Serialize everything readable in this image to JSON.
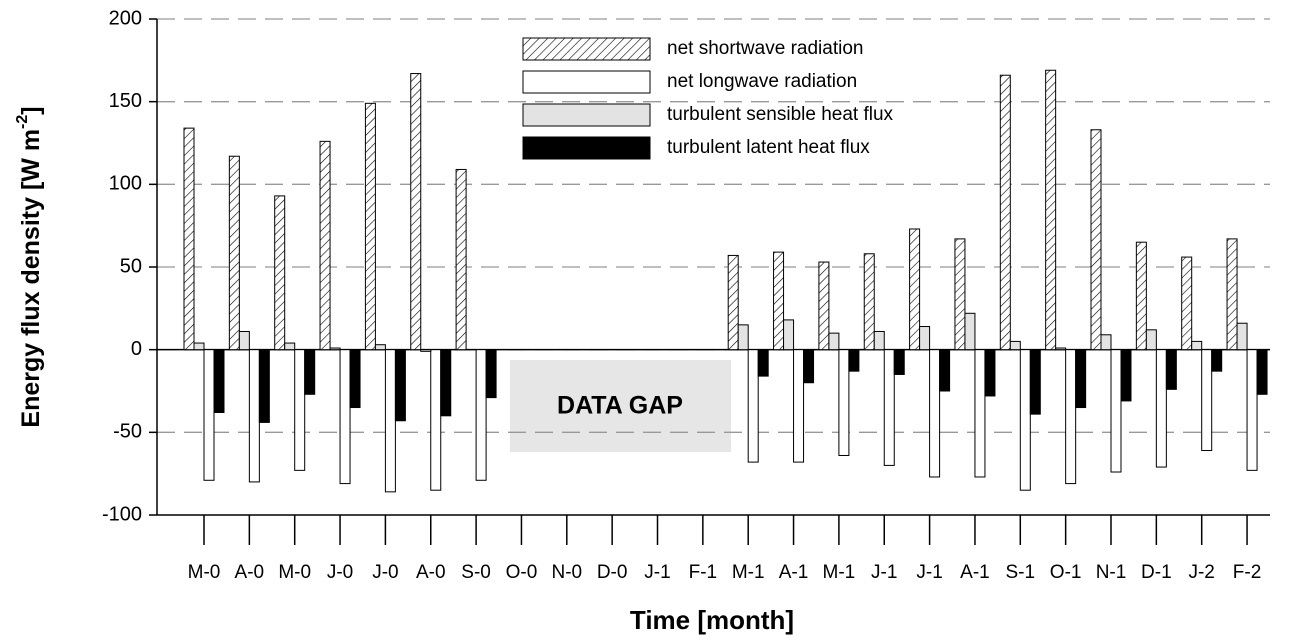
{
  "chart_data": {
    "type": "bar",
    "y_label": {
      "text": "Energy flux density [W m",
      "superscript": "-2",
      "suffix": "]"
    },
    "x_label": "Time [month]",
    "annotation": "DATA GAP",
    "categories": [
      "M-0",
      "A-0",
      "M-0",
      "J-0",
      "J-0",
      "A-0",
      "S-0",
      "O-0",
      "N-0",
      "D-0",
      "J-1",
      "F-1",
      "M-1",
      "A-1",
      "M-1",
      "J-1",
      "J-1",
      "A-1",
      "S-1",
      "O-1",
      "N-1",
      "D-1",
      "J-2",
      "F-2"
    ],
    "series": [
      {
        "name": "net shortwave radiation",
        "color": "#ffffff",
        "hatch": true,
        "values": [
          134,
          117,
          93,
          126,
          149,
          167,
          109,
          null,
          null,
          null,
          null,
          null,
          57,
          59,
          53,
          58,
          73,
          67,
          166,
          169,
          133,
          65,
          56,
          67
        ]
      },
      {
        "name": "net longwave radiation",
        "color": "#ffffff",
        "hatch": false,
        "values": [
          -79,
          -80,
          -73,
          -81,
          -86,
          -85,
          -79,
          null,
          null,
          null,
          null,
          null,
          -68,
          -68,
          -64,
          -70,
          -77,
          -77,
          -85,
          -81,
          -74,
          -71,
          -61,
          -73
        ]
      },
      {
        "name": "turbulent sensible heat flux",
        "color": "#e3e3e3",
        "hatch": false,
        "values": [
          4,
          11,
          4,
          1,
          3,
          -1,
          0,
          null,
          null,
          null,
          null,
          null,
          15,
          18,
          10,
          11,
          14,
          22,
          5,
          1,
          9,
          12,
          5,
          16
        ]
      },
      {
        "name": "turbulent latent heat flux",
        "color": "#000000",
        "hatch": false,
        "values": [
          -38,
          -44,
          -27,
          -35,
          -43,
          -40,
          -29,
          null,
          null,
          null,
          null,
          null,
          -16,
          -20,
          -13,
          -15,
          -25,
          -28,
          -39,
          -35,
          -31,
          -24,
          -13,
          -27
        ]
      }
    ],
    "ylim": [
      -100,
      200
    ],
    "yticks": [
      -100,
      -50,
      0,
      50,
      100,
      150,
      200
    ],
    "grid": true
  }
}
